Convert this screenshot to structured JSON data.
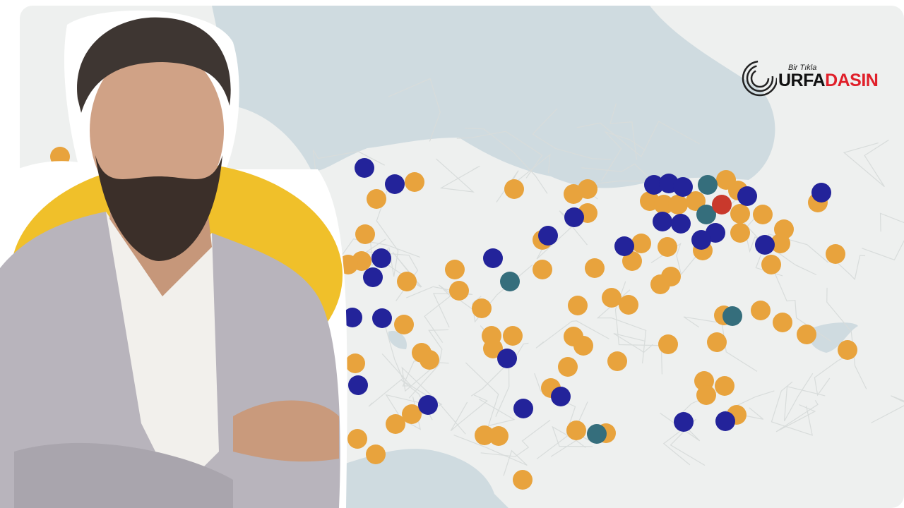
{
  "logo": {
    "tagline": "Bir Tıkla",
    "brand_part1": "URFA",
    "brand_part2": "DASIN"
  },
  "colors": {
    "land": "#eef0ef",
    "sea": "#cfdbe0",
    "marker_orange": "#e8a33d",
    "marker_blue": "#23239a",
    "marker_teal": "#356e7c",
    "marker_red": "#c9392c",
    "backdrop_yellow": "#f0c02a",
    "suit": "#b8b4bc"
  },
  "markers": {
    "orange_count": 95,
    "blue_count": 27,
    "teal_count": 6,
    "red_count": 1
  }
}
